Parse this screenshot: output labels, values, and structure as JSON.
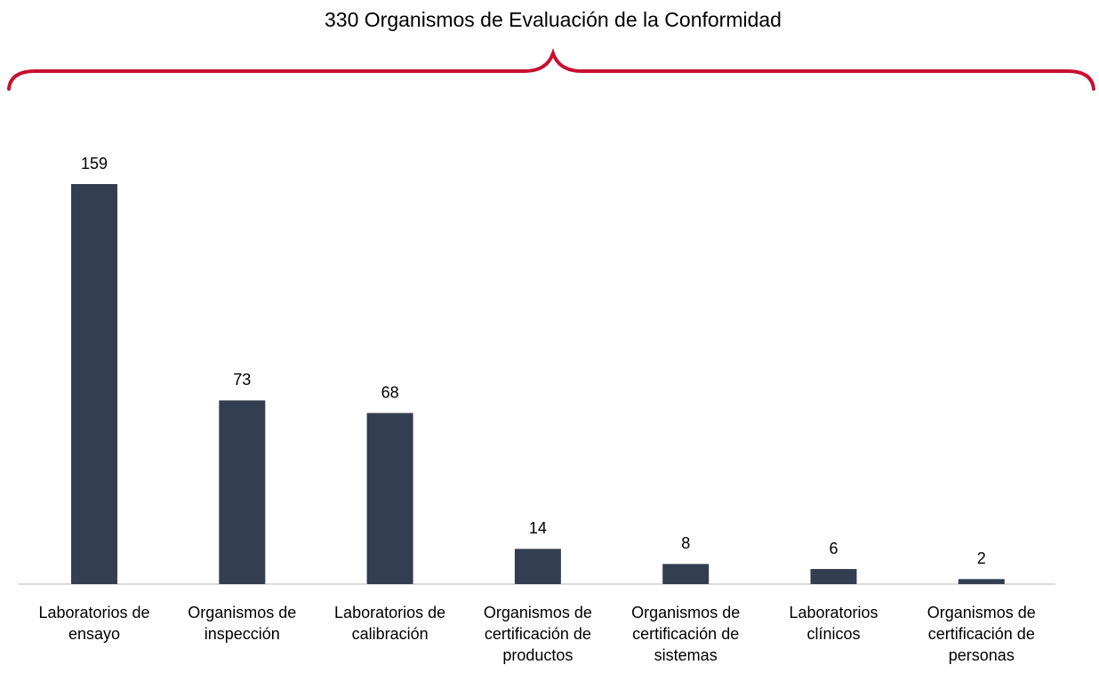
{
  "chart_data": {
    "type": "bar",
    "title": "330 Organismos de Evaluación de la Conformidad",
    "categories": [
      "Laboratorios de ensayo",
      "Organismos de inspección",
      "Laboratorios de calibración",
      "Organismos de certificación de productos",
      "Organismos de certificación de sistemas",
      "Laboratorios clínicos",
      "Organismos de certificación de personas"
    ],
    "values": [
      159,
      73,
      68,
      14,
      8,
      6,
      2
    ],
    "color": "#333f50"
  }
}
